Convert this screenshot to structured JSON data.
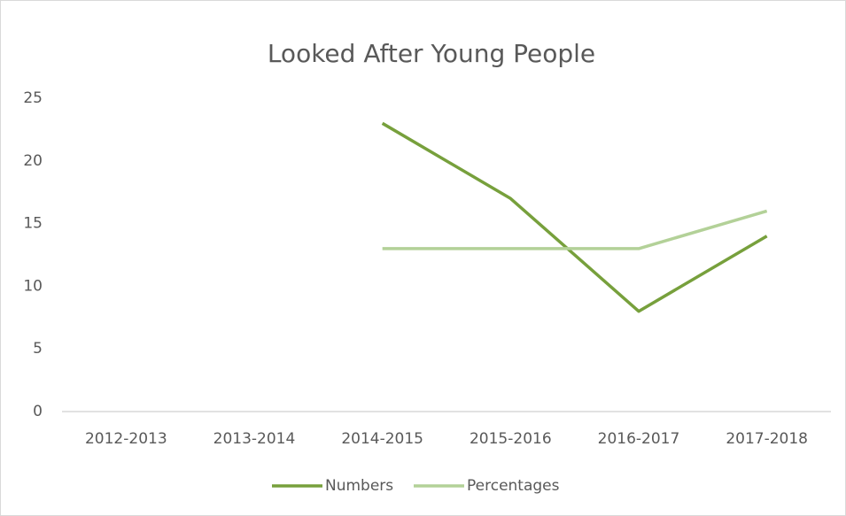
{
  "chart_data": {
    "type": "line",
    "title": "Looked After Young People",
    "categories": [
      "2012-2013",
      "2013-2014",
      "2014-2015",
      "2015-2016",
      "2016-2017",
      "2017-2018"
    ],
    "series": [
      {
        "name": "Numbers",
        "color": "#77a03c",
        "values": [
          null,
          null,
          23,
          17,
          8,
          14
        ]
      },
      {
        "name": "Percentages",
        "color": "#b3d198",
        "values": [
          null,
          null,
          13,
          13,
          13,
          16
        ]
      }
    ],
    "ylim": [
      0,
      25
    ],
    "yticks": [
      0,
      5,
      10,
      15,
      20,
      25
    ],
    "grid": false,
    "legend": "bottom"
  }
}
